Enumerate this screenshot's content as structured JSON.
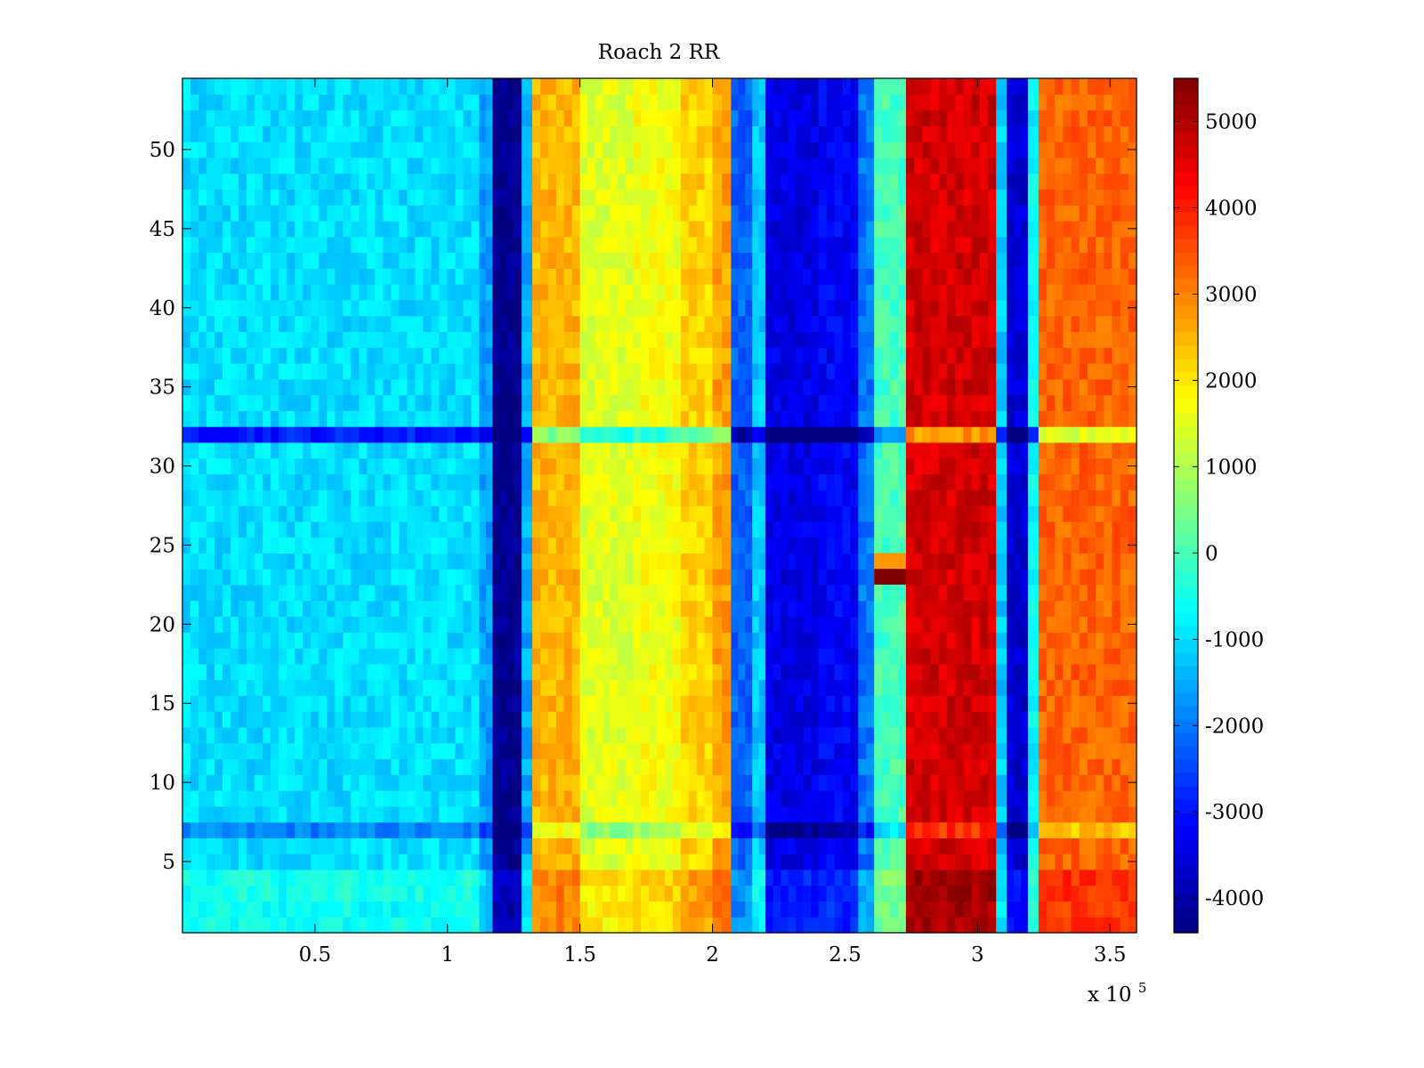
{
  "chart_data": {
    "type": "heatmap",
    "title": "Roach 2 RR",
    "xlabel": "",
    "ylabel": "",
    "x_scale_label": "x 10",
    "x_scale_exponent": "5",
    "xlim": [
      0,
      3.6
    ],
    "ylim": [
      0.5,
      54.5
    ],
    "x_ticks": [
      0.5,
      1,
      1.5,
      2,
      2.5,
      3,
      3.5
    ],
    "x_tick_labels": [
      "0.5",
      "1",
      "1.5",
      "2",
      "2.5",
      "3",
      "3.5"
    ],
    "y_ticks": [
      5,
      10,
      15,
      20,
      25,
      30,
      35,
      40,
      45,
      50
    ],
    "y_tick_labels": [
      "5",
      "10",
      "15",
      "20",
      "25",
      "30",
      "35",
      "40",
      "45",
      "50"
    ],
    "colorbar": {
      "colormap": "jet",
      "clim": [
        -4400,
        5500
      ],
      "ticks": [
        -4000,
        -3000,
        -2000,
        -1000,
        0,
        1000,
        2000,
        3000,
        4000,
        5000
      ],
      "tick_labels": [
        "-4000",
        "-3000",
        "-2000",
        "-1000",
        "0",
        "1000",
        "2000",
        "3000",
        "4000",
        "5000"
      ]
    },
    "rows": 54,
    "column_profile": [
      {
        "x0": 0.0,
        "x1": 1.12,
        "value": -1000
      },
      {
        "x0": 1.12,
        "x1": 1.17,
        "value": -1600
      },
      {
        "x0": 1.17,
        "x1": 1.28,
        "value": -4300
      },
      {
        "x0": 1.28,
        "x1": 1.32,
        "value": -1500
      },
      {
        "x0": 1.32,
        "x1": 1.5,
        "value": 2500
      },
      {
        "x0": 1.5,
        "x1": 1.7,
        "value": 1500
      },
      {
        "x0": 1.7,
        "x1": 1.88,
        "value": 1700
      },
      {
        "x0": 1.88,
        "x1": 2.0,
        "value": 2200
      },
      {
        "x0": 2.0,
        "x1": 2.07,
        "value": 2700
      },
      {
        "x0": 2.07,
        "x1": 2.15,
        "value": -2200
      },
      {
        "x0": 2.15,
        "x1": 2.2,
        "value": -1200
      },
      {
        "x0": 2.2,
        "x1": 2.4,
        "value": -3400
      },
      {
        "x0": 2.4,
        "x1": 2.55,
        "value": -3200
      },
      {
        "x0": 2.55,
        "x1": 2.61,
        "value": -2000
      },
      {
        "x0": 2.61,
        "x1": 2.73,
        "value": 0
      },
      {
        "x0": 2.73,
        "x1": 3.07,
        "value": 4700
      },
      {
        "x0": 3.07,
        "x1": 3.11,
        "value": -1200
      },
      {
        "x0": 3.11,
        "x1": 3.19,
        "value": -3600
      },
      {
        "x0": 3.19,
        "x1": 3.23,
        "value": -700
      },
      {
        "x0": 3.23,
        "x1": 3.6,
        "value": 3300
      }
    ],
    "row_profile": [
      {
        "row": 32,
        "offset": -1900
      },
      {
        "row": 7,
        "offset": -900
      },
      {
        "row": 3,
        "offset": 500
      },
      {
        "row": 4,
        "offset": 500
      },
      {
        "row": 1,
        "offset": 400
      },
      {
        "row": 2,
        "offset": 400
      }
    ],
    "annotations": [
      {
        "x0": 2.61,
        "x1": 2.73,
        "y0": 22.5,
        "y1": 23.5,
        "value": 5500
      },
      {
        "x0": 2.61,
        "x1": 2.73,
        "y0": 23.5,
        "y1": 24.5,
        "value": 2800
      }
    ]
  }
}
